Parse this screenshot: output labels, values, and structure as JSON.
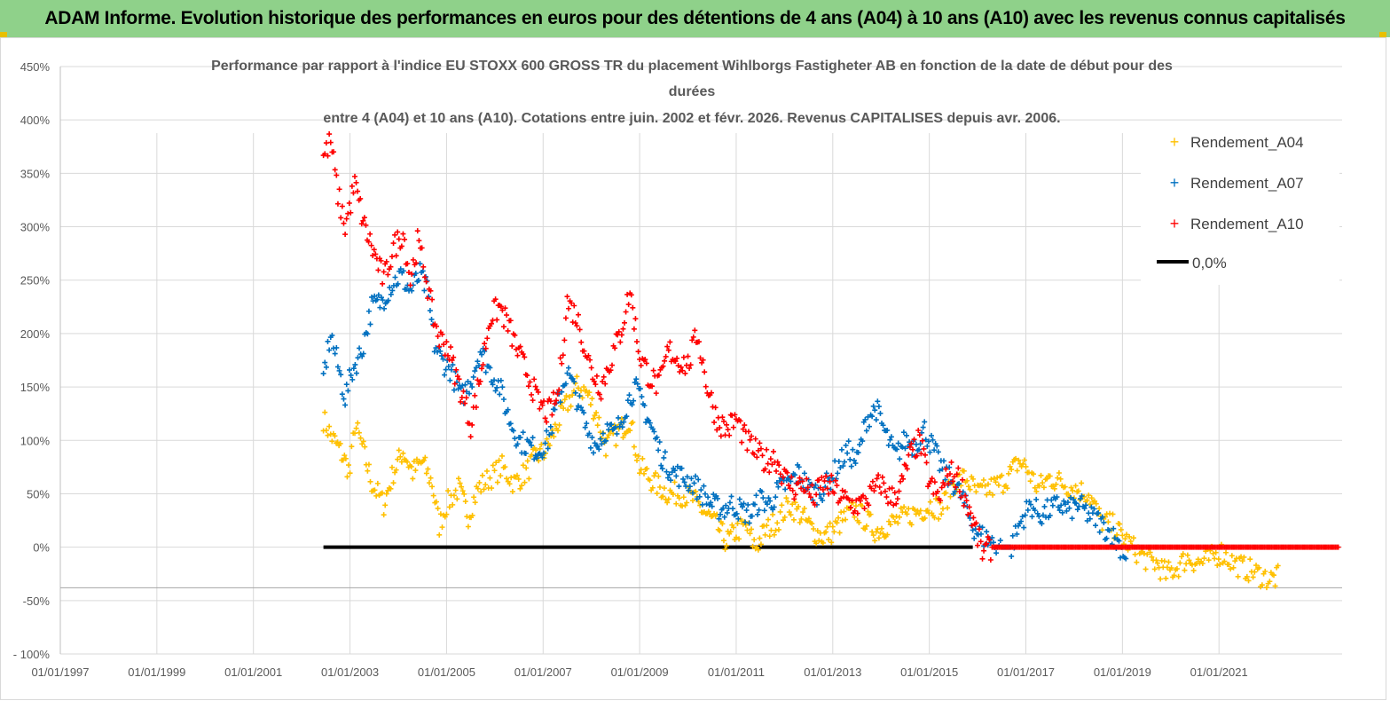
{
  "header": {
    "title": "ADAM Informe. Evolution historique des performances en euros pour des détentions de 4 ans (A04) à 10 ans (A10) avec les revenus connus capitalisés"
  },
  "chart_data": {
    "type": "scatter",
    "title_lines": [
      "Performance par rapport à l'indice EU STOXX 600 GROSS TR  du placement Wihlborgs Fastigheter AB en fonction de la date de début pour des",
      "durées",
      "entre 4 (A04) et 10 ans (A10). Cotations entre juin. 2002 et févr. 2026. Revenus CAPITALISES depuis avr. 2006."
    ],
    "xlabel": "",
    "ylabel": "",
    "x_range": [
      1997.0,
      2023.55
    ],
    "ylim": [
      -100,
      450
    ],
    "y_ticks": [
      -100,
      -50,
      0,
      50,
      100,
      150,
      200,
      250,
      300,
      350,
      400,
      450
    ],
    "y_tick_labels": [
      "- 100%",
      "-50%",
      "0%",
      "50%",
      "100%",
      "150%",
      "200%",
      "250%",
      "300%",
      "350%",
      "400%",
      "450%"
    ],
    "x_ticks": [
      1997,
      1999,
      2001,
      2003,
      2005,
      2007,
      2009,
      2011,
      2013,
      2015,
      2017,
      2019,
      2021
    ],
    "x_tick_labels": [
      "01/01/1997",
      "01/01/1999",
      "01/01/2001",
      "01/01/2003",
      "01/01/2005",
      "01/01/2007",
      "01/01/2009",
      "01/01/2011",
      "01/01/2013",
      "01/01/2015",
      "01/01/2017",
      "01/01/2019",
      "01/01/2021"
    ],
    "grid": true,
    "legend_position": "top-right",
    "series": [
      {
        "name": "Rendement_A04",
        "color": "#ffc000",
        "marker": "plus",
        "points": [
          [
            2002.45,
            120
          ],
          [
            2002.6,
            105
          ],
          [
            2002.8,
            90
          ],
          [
            2003.0,
            70
          ],
          [
            2003.1,
            115
          ],
          [
            2003.25,
            95
          ],
          [
            2003.45,
            60
          ],
          [
            2003.7,
            40
          ],
          [
            2003.9,
            70
          ],
          [
            2004.1,
            90
          ],
          [
            2004.3,
            70
          ],
          [
            2004.5,
            80
          ],
          [
            2004.7,
            60
          ],
          [
            2004.85,
            20
          ],
          [
            2005.0,
            40
          ],
          [
            2005.25,
            55
          ],
          [
            2005.45,
            30
          ],
          [
            2005.65,
            55
          ],
          [
            2005.9,
            65
          ],
          [
            2006.15,
            75
          ],
          [
            2006.4,
            60
          ],
          [
            2006.65,
            70
          ],
          [
            2006.85,
            85
          ],
          [
            2007.05,
            90
          ],
          [
            2007.25,
            110
          ],
          [
            2007.45,
            130
          ],
          [
            2007.7,
            150
          ],
          [
            2007.9,
            145
          ],
          [
            2008.1,
            125
          ],
          [
            2008.3,
            95
          ],
          [
            2008.6,
            110
          ],
          [
            2008.8,
            120
          ],
          [
            2009.0,
            75
          ],
          [
            2009.3,
            60
          ],
          [
            2009.6,
            50
          ],
          [
            2009.85,
            50
          ],
          [
            2010.1,
            45
          ],
          [
            2010.4,
            30
          ],
          [
            2010.6,
            20
          ],
          [
            2010.8,
            5
          ],
          [
            2011.0,
            15
          ],
          [
            2011.2,
            20
          ],
          [
            2011.4,
            0
          ],
          [
            2011.6,
            15
          ],
          [
            2011.85,
            25
          ],
          [
            2012.1,
            40
          ],
          [
            2012.35,
            30
          ],
          [
            2012.6,
            15
          ],
          [
            2012.8,
            10
          ],
          [
            2013.0,
            15
          ],
          [
            2013.2,
            25
          ],
          [
            2013.45,
            35
          ],
          [
            2013.7,
            25
          ],
          [
            2013.9,
            15
          ],
          [
            2014.1,
            20
          ],
          [
            2014.35,
            25
          ],
          [
            2014.6,
            30
          ],
          [
            2014.85,
            35
          ],
          [
            2015.05,
            40
          ],
          [
            2015.25,
            35
          ],
          [
            2015.5,
            60
          ],
          [
            2015.75,
            65
          ],
          [
            2016.0,
            50
          ],
          [
            2016.25,
            55
          ],
          [
            2016.5,
            60
          ],
          [
            2016.7,
            70
          ],
          [
            2016.85,
            80
          ],
          [
            2017.0,
            75
          ],
          [
            2017.25,
            55
          ],
          [
            2017.5,
            65
          ],
          [
            2017.75,
            60
          ],
          [
            2018.0,
            55
          ],
          [
            2018.3,
            50
          ],
          [
            2018.55,
            25
          ],
          [
            2018.8,
            20
          ],
          [
            2019.0,
            10
          ],
          [
            2019.2,
            0
          ],
          [
            2019.45,
            -10
          ],
          [
            2019.7,
            -15
          ],
          [
            2019.9,
            -25
          ],
          [
            2020.1,
            -20
          ],
          [
            2020.35,
            -10
          ],
          [
            2020.6,
            -15
          ],
          [
            2020.85,
            -10
          ],
          [
            2021.05,
            -5
          ],
          [
            2021.3,
            -15
          ],
          [
            2021.55,
            -20
          ],
          [
            2021.8,
            -25
          ],
          [
            2022.05,
            -30
          ],
          [
            2022.25,
            -28
          ]
        ]
      },
      {
        "name": "Rendement_A07",
        "color": "#0070c0",
        "marker": "plus",
        "points": [
          [
            2002.45,
            160
          ],
          [
            2002.6,
            200
          ],
          [
            2002.75,
            170
          ],
          [
            2002.9,
            140
          ],
          [
            2003.05,
            165
          ],
          [
            2003.25,
            185
          ],
          [
            2003.45,
            225
          ],
          [
            2003.65,
            230
          ],
          [
            2003.85,
            245
          ],
          [
            2004.05,
            255
          ],
          [
            2004.25,
            240
          ],
          [
            2004.45,
            255
          ],
          [
            2004.6,
            240
          ],
          [
            2004.75,
            190
          ],
          [
            2004.9,
            175
          ],
          [
            2005.1,
            165
          ],
          [
            2005.3,
            140
          ],
          [
            2005.5,
            155
          ],
          [
            2005.7,
            185
          ],
          [
            2005.9,
            165
          ],
          [
            2006.1,
            150
          ],
          [
            2006.3,
            120
          ],
          [
            2006.5,
            100
          ],
          [
            2006.7,
            95
          ],
          [
            2006.9,
            90
          ],
          [
            2007.1,
            100
          ],
          [
            2007.3,
            135
          ],
          [
            2007.5,
            165
          ],
          [
            2007.7,
            140
          ],
          [
            2007.9,
            110
          ],
          [
            2008.1,
            95
          ],
          [
            2008.3,
            110
          ],
          [
            2008.5,
            105
          ],
          [
            2008.7,
            130
          ],
          [
            2008.9,
            150
          ],
          [
            2009.1,
            130
          ],
          [
            2009.3,
            105
          ],
          [
            2009.5,
            80
          ],
          [
            2009.7,
            70
          ],
          [
            2009.9,
            65
          ],
          [
            2010.1,
            60
          ],
          [
            2010.3,
            50
          ],
          [
            2010.5,
            40
          ],
          [
            2010.7,
            35
          ],
          [
            2010.9,
            40
          ],
          [
            2011.1,
            35
          ],
          [
            2011.3,
            30
          ],
          [
            2011.5,
            45
          ],
          [
            2011.7,
            40
          ],
          [
            2011.9,
            55
          ],
          [
            2012.1,
            60
          ],
          [
            2012.3,
            70
          ],
          [
            2012.5,
            55
          ],
          [
            2012.7,
            50
          ],
          [
            2012.9,
            60
          ],
          [
            2013.1,
            75
          ],
          [
            2013.3,
            90
          ],
          [
            2013.5,
            80
          ],
          [
            2013.7,
            120
          ],
          [
            2013.9,
            130
          ],
          [
            2014.1,
            105
          ],
          [
            2014.3,
            85
          ],
          [
            2014.5,
            100
          ],
          [
            2014.7,
            95
          ],
          [
            2014.9,
            110
          ],
          [
            2015.1,
            90
          ],
          [
            2015.3,
            70
          ],
          [
            2015.5,
            60
          ],
          [
            2015.7,
            45
          ],
          [
            2015.9,
            20
          ],
          [
            2016.1,
            10
          ],
          [
            2016.3,
            5
          ],
          [
            2016.5,
            0
          ],
          [
            2016.7,
            0
          ],
          [
            2016.9,
            25
          ],
          [
            2017.1,
            40
          ],
          [
            2017.3,
            30
          ],
          [
            2017.5,
            35
          ],
          [
            2017.7,
            40
          ],
          [
            2017.9,
            35
          ],
          [
            2018.1,
            40
          ],
          [
            2018.3,
            30
          ],
          [
            2018.5,
            25
          ],
          [
            2018.7,
            15
          ],
          [
            2018.9,
            5
          ],
          [
            2019.1,
            -10
          ]
        ]
      },
      {
        "name": "Rendement_A10",
        "color": "#ff0000",
        "marker": "plus",
        "points": [
          [
            2002.45,
            365
          ],
          [
            2002.6,
            380
          ],
          [
            2002.75,
            330
          ],
          [
            2002.9,
            300
          ],
          [
            2003.1,
            340
          ],
          [
            2003.3,
            300
          ],
          [
            2003.5,
            275
          ],
          [
            2003.7,
            250
          ],
          [
            2003.9,
            280
          ],
          [
            2004.1,
            295
          ],
          [
            2004.25,
            250
          ],
          [
            2004.4,
            285
          ],
          [
            2004.55,
            260
          ],
          [
            2004.7,
            220
          ],
          [
            2004.85,
            195
          ],
          [
            2005.0,
            190
          ],
          [
            2005.2,
            160
          ],
          [
            2005.35,
            140
          ],
          [
            2005.5,
            115
          ],
          [
            2005.7,
            160
          ],
          [
            2005.9,
            215
          ],
          [
            2006.1,
            225
          ],
          [
            2006.3,
            205
          ],
          [
            2006.5,
            180
          ],
          [
            2006.7,
            160
          ],
          [
            2006.9,
            135
          ],
          [
            2007.1,
            125
          ],
          [
            2007.3,
            140
          ],
          [
            2007.5,
            230
          ],
          [
            2007.7,
            215
          ],
          [
            2007.85,
            190
          ],
          [
            2008.0,
            165
          ],
          [
            2008.2,
            150
          ],
          [
            2008.4,
            175
          ],
          [
            2008.6,
            200
          ],
          [
            2008.8,
            240
          ],
          [
            2009.0,
            180
          ],
          [
            2009.2,
            160
          ],
          [
            2009.4,
            150
          ],
          [
            2009.6,
            185
          ],
          [
            2009.8,
            175
          ],
          [
            2010.0,
            170
          ],
          [
            2010.2,
            200
          ],
          [
            2010.4,
            150
          ],
          [
            2010.6,
            120
          ],
          [
            2010.8,
            110
          ],
          [
            2011.0,
            120
          ],
          [
            2011.2,
            100
          ],
          [
            2011.4,
            90
          ],
          [
            2011.6,
            80
          ],
          [
            2011.8,
            85
          ],
          [
            2012.0,
            65
          ],
          [
            2012.2,
            55
          ],
          [
            2012.4,
            60
          ],
          [
            2012.6,
            45
          ],
          [
            2012.8,
            60
          ],
          [
            2013.0,
            55
          ],
          [
            2013.2,
            45
          ],
          [
            2013.4,
            40
          ],
          [
            2013.6,
            40
          ],
          [
            2013.8,
            50
          ],
          [
            2014.0,
            60
          ],
          [
            2014.2,
            45
          ],
          [
            2014.4,
            55
          ],
          [
            2014.6,
            85
          ],
          [
            2014.8,
            100
          ],
          [
            2015.0,
            60
          ],
          [
            2015.2,
            45
          ],
          [
            2015.4,
            70
          ],
          [
            2015.6,
            65
          ],
          [
            2015.8,
            40
          ],
          [
            2016.0,
            10
          ],
          [
            2016.1,
            -5
          ],
          [
            2016.3,
            0
          ],
          [
            2016.6,
            0
          ],
          [
            2017.0,
            0
          ],
          [
            2017.5,
            0
          ],
          [
            2018.0,
            0
          ],
          [
            2018.5,
            0
          ],
          [
            2019.0,
            0
          ],
          [
            2019.5,
            0
          ],
          [
            2020.0,
            0
          ],
          [
            2020.5,
            0
          ],
          [
            2021.0,
            0
          ],
          [
            2021.5,
            0
          ],
          [
            2022.0,
            0
          ],
          [
            2022.5,
            0
          ],
          [
            2023.0,
            0
          ],
          [
            2023.5,
            0
          ]
        ]
      },
      {
        "name": "0,0%",
        "color": "#000000",
        "type": "line",
        "x": [
          2002.45,
          2015.9
        ],
        "y": [
          0,
          0
        ]
      }
    ]
  }
}
